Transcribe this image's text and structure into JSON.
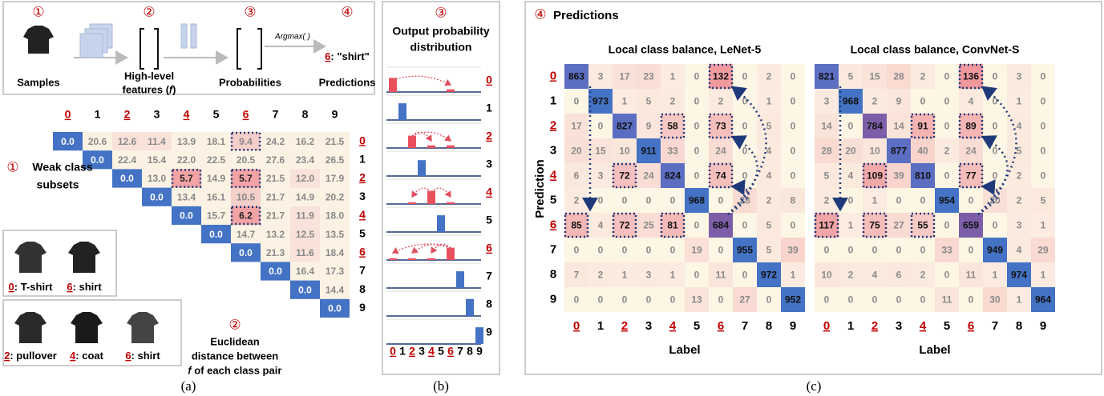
{
  "panel_a": {
    "pipeline": {
      "steps": [
        {
          "marker": "①",
          "label": [
            "Samples"
          ]
        },
        {
          "marker": "②",
          "label": [
            "High-level",
            "features (𝑓)"
          ]
        },
        {
          "marker": "③",
          "label": [
            "Probabilities"
          ]
        },
        {
          "marker": "④",
          "label": [
            "Predictions"
          ]
        }
      ],
      "operation": "Argmax( )",
      "prediction_class": "6",
      "prediction_name": ": \"shirt\""
    },
    "distance_matrix": {
      "columns": [
        "0",
        "1",
        "2",
        "3",
        "4",
        "5",
        "6",
        "7",
        "8",
        "9"
      ],
      "rows": [
        "0",
        "1",
        "2",
        "3",
        "4",
        "5",
        "6",
        "7",
        "8",
        "9"
      ],
      "values": [
        [
          "0.0",
          "20.6",
          "12.6",
          "11.4",
          "13.9",
          "18.1",
          "9.4",
          "24.2",
          "16.2",
          "21.5"
        ],
        [
          "0.0",
          "22.4",
          "15.4",
          "22.0",
          "22.5",
          "20.5",
          "27.6",
          "23.4",
          "26.5"
        ],
        [
          "0.0",
          "13.0",
          "5.7",
          "14.9",
          "5.7",
          "21.5",
          "12.0",
          "17.9"
        ],
        [
          "0.0",
          "13.4",
          "16.1",
          "10.5",
          "21.7",
          "14.9",
          "20.2"
        ],
        [
          "0.0",
          "15.7",
          "6.2",
          "21.7",
          "11.9",
          "18.0"
        ],
        [
          "0.0",
          "14.7",
          "13.2",
          "12.5",
          "13.5"
        ],
        [
          "0.0",
          "21.3",
          "11.6",
          "18.4"
        ],
        [
          "0.0",
          "16.4",
          "17.3"
        ],
        [
          "0.0",
          "14.4"
        ],
        [
          "0.0"
        ]
      ]
    },
    "weak_subsets": {
      "marker": "①",
      "title": [
        "Weak class",
        "subsets"
      ],
      "groups": [
        [
          {
            "class": "0",
            "name": ": T-shirt"
          },
          {
            "class": "6",
            "name": ": shirt"
          }
        ],
        [
          {
            "class": "2",
            "name": ": pullover"
          },
          {
            "class": "4",
            "name": ": coat"
          },
          {
            "class": "6",
            "name": ": shirt"
          }
        ]
      ]
    },
    "distance_note": {
      "marker": "②",
      "lines": [
        "Euclidean",
        "distance between",
        "𝑓 of each class pair"
      ]
    },
    "caption": "(a)"
  },
  "panel_b": {
    "marker": "③",
    "title": [
      "Output probability",
      "distribution"
    ],
    "rows": [
      "0",
      "1",
      "2",
      "3",
      "4",
      "5",
      "6",
      "7",
      "8",
      "9"
    ],
    "columns": [
      "0",
      "1",
      "2",
      "3",
      "4",
      "5",
      "6",
      "7",
      "8",
      "9"
    ],
    "probabilities": [
      [
        0.8,
        0,
        0,
        0,
        0,
        0,
        0.15,
        0,
        0,
        0
      ],
      [
        0,
        0.95,
        0,
        0,
        0,
        0,
        0,
        0,
        0,
        0
      ],
      [
        0,
        0,
        0.7,
        0,
        0.15,
        0,
        0.15,
        0,
        0,
        0
      ],
      [
        0,
        0,
        0,
        0.9,
        0,
        0,
        0,
        0,
        0,
        0
      ],
      [
        0,
        0,
        0.1,
        0,
        0.75,
        0,
        0.1,
        0,
        0,
        0
      ],
      [
        0,
        0,
        0,
        0,
        0,
        0.95,
        0,
        0,
        0,
        0
      ],
      [
        0.1,
        0,
        0.1,
        0,
        0.1,
        0,
        0.7,
        0,
        0,
        0
      ],
      [
        0,
        0,
        0,
        0,
        0,
        0,
        0,
        0.95,
        0,
        0
      ],
      [
        0,
        0,
        0,
        0,
        0,
        0,
        0,
        0,
        0.97,
        0
      ],
      [
        0,
        0,
        0,
        0,
        0,
        0,
        0,
        0,
        0,
        0.95
      ]
    ],
    "caption": "(b)"
  },
  "panel_c": {
    "marker": "④",
    "title": "Predictions",
    "y_label": "Prediction",
    "x_label": "Label",
    "classes": [
      "0",
      "1",
      "2",
      "3",
      "4",
      "5",
      "6",
      "7",
      "8",
      "9"
    ],
    "matrices": [
      {
        "title": "Local class balance,  LeNet-5",
        "values": [
          [
            863,
            3,
            17,
            23,
            1,
            0,
            132,
            0,
            2,
            0
          ],
          [
            0,
            973,
            1,
            5,
            2,
            0,
            2,
            0,
            1,
            0
          ],
          [
            17,
            0,
            827,
            9,
            58,
            0,
            73,
            0,
            5,
            0
          ],
          [
            20,
            15,
            10,
            911,
            33,
            0,
            24,
            0,
            4,
            0
          ],
          [
            6,
            3,
            72,
            24,
            824,
            0,
            74,
            0,
            4,
            0
          ],
          [
            2,
            0,
            0,
            0,
            0,
            968,
            0,
            28,
            2,
            8
          ],
          [
            85,
            4,
            72,
            25,
            81,
            0,
            684,
            0,
            5,
            0
          ],
          [
            0,
            0,
            0,
            0,
            0,
            19,
            0,
            955,
            5,
            39
          ],
          [
            7,
            2,
            1,
            3,
            1,
            0,
            11,
            0,
            972,
            1
          ],
          [
            0,
            0,
            0,
            0,
            0,
            13,
            0,
            27,
            0,
            952
          ]
        ]
      },
      {
        "title": "Local class balance,  ConvNet-S",
        "values": [
          [
            821,
            5,
            15,
            28,
            2,
            0,
            136,
            0,
            3,
            0
          ],
          [
            3,
            968,
            2,
            9,
            0,
            0,
            4,
            0,
            1,
            0
          ],
          [
            14,
            0,
            784,
            14,
            91,
            0,
            89,
            0,
            4,
            0
          ],
          [
            28,
            20,
            10,
            877,
            40,
            2,
            24,
            0,
            5,
            0
          ],
          [
            5,
            4,
            109,
            39,
            810,
            0,
            77,
            0,
            2,
            0
          ],
          [
            2,
            0,
            1,
            0,
            0,
            954,
            0,
            20,
            2,
            5
          ],
          [
            117,
            1,
            75,
            27,
            55,
            0,
            659,
            0,
            3,
            1
          ],
          [
            0,
            0,
            0,
            0,
            0,
            33,
            0,
            949,
            4,
            29
          ],
          [
            10,
            2,
            4,
            6,
            2,
            0,
            11,
            1,
            974,
            1
          ],
          [
            0,
            0,
            0,
            0,
            0,
            11,
            0,
            30,
            1,
            964
          ]
        ]
      }
    ],
    "caption": "(c)"
  }
}
